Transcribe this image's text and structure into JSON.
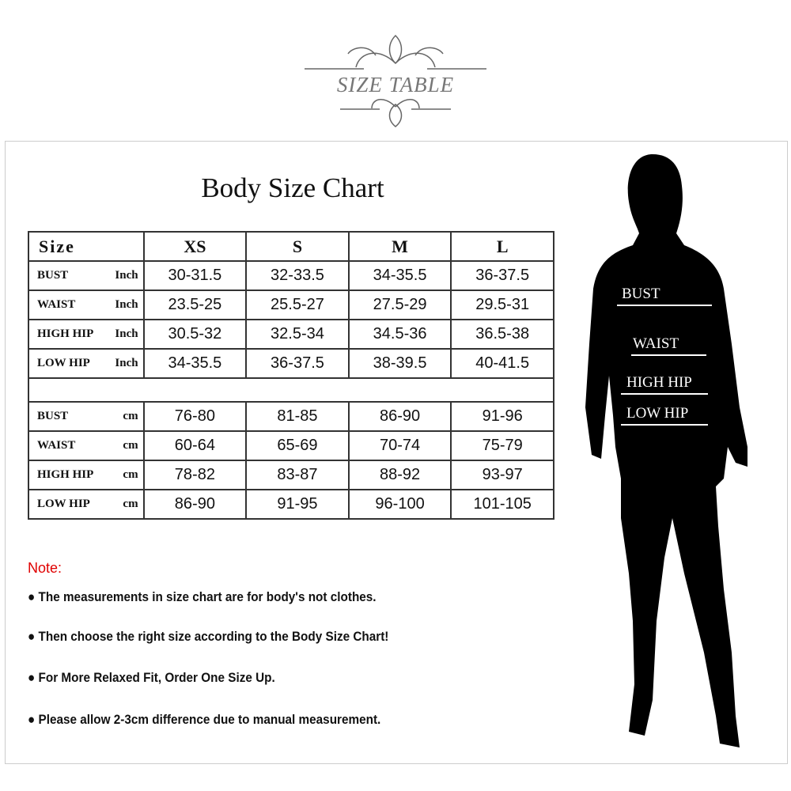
{
  "header": {
    "logo_text": "SIZE TABLE"
  },
  "chart": {
    "title": "Body Size Chart",
    "columns": [
      "Size",
      "XS",
      "S",
      "M",
      "L"
    ],
    "inch_rows": [
      {
        "label": "BUST",
        "unit": "Inch",
        "values": [
          "30-31.5",
          "32-33.5",
          "34-35.5",
          "36-37.5"
        ]
      },
      {
        "label": "WAIST",
        "unit": "Inch",
        "values": [
          "23.5-25",
          "25.5-27",
          "27.5-29",
          "29.5-31"
        ]
      },
      {
        "label": "HIGH HIP",
        "unit": "Inch",
        "values": [
          "30.5-32",
          "32.5-34",
          "34.5-36",
          "36.5-38"
        ]
      },
      {
        "label": "LOW HIP",
        "unit": "Inch",
        "values": [
          "34-35.5",
          "36-37.5",
          "38-39.5",
          "40-41.5"
        ]
      }
    ],
    "cm_rows": [
      {
        "label": "BUST",
        "unit": "cm",
        "values": [
          "76-80",
          "81-85",
          "86-90",
          "91-96"
        ]
      },
      {
        "label": "WAIST",
        "unit": "cm",
        "values": [
          "60-64",
          "65-69",
          "70-74",
          "75-79"
        ]
      },
      {
        "label": "HIGH HIP",
        "unit": "cm",
        "values": [
          "78-82",
          "83-87",
          "88-92",
          "93-97"
        ]
      },
      {
        "label": "LOW HIP",
        "unit": "cm",
        "values": [
          "86-90",
          "91-95",
          "96-100",
          "101-105"
        ]
      }
    ]
  },
  "notes": {
    "heading": "Note:",
    "items": [
      "The measurements in size chart are for body's not clothes.",
      "Then choose the right size according to the Body Size Chart!",
      "For More Relaxed Fit, Order One Size Up.",
      "Please allow 2-3cm difference due to manual measurement."
    ],
    "heading_color": "#e00000"
  },
  "figure": {
    "labels": [
      "BUST",
      "WAIST",
      "HIGH HIP",
      "LOW HIP"
    ]
  }
}
